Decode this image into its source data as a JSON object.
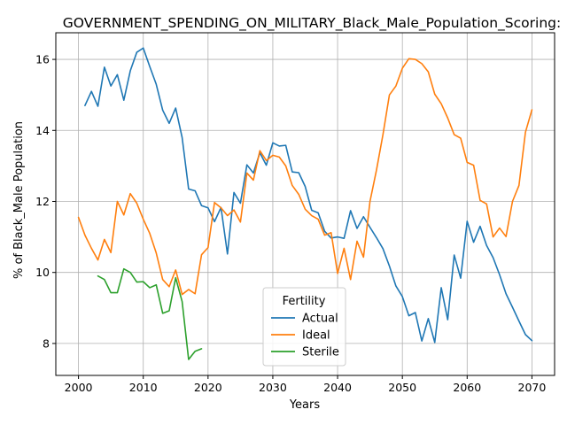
{
  "chart_data": {
    "type": "line",
    "title": "GOVERNMENT_SPENDING_ON_MILITARY_Black_Male_Population_Scoring:",
    "xlabel": "Years",
    "ylabel": "% of Black_Male Population",
    "xlim": [
      1996.5,
      2073.5
    ],
    "ylim": [
      7.1,
      16.75
    ],
    "xticks": [
      2000,
      2010,
      2020,
      2030,
      2040,
      2050,
      2060,
      2070
    ],
    "yticks": [
      8,
      10,
      12,
      14,
      16
    ],
    "grid": true,
    "legend": {
      "title": "Fertility",
      "placement": "lower-center"
    },
    "series": [
      {
        "name": "Actual",
        "color": "#1f77b4",
        "x": [
          2001,
          2002,
          2003,
          2004,
          2005,
          2006,
          2007,
          2008,
          2009,
          2010,
          2011,
          2012,
          2013,
          2014,
          2015,
          2016,
          2017,
          2018,
          2019,
          2020,
          2021,
          2022,
          2023,
          2024,
          2025,
          2026,
          2027,
          2028,
          2029,
          2030,
          2031,
          2032,
          2033,
          2034,
          2035,
          2036,
          2037,
          2038,
          2039,
          2040,
          2041,
          2042,
          2043,
          2044,
          2045,
          2046,
          2047,
          2048,
          2049,
          2050,
          2051,
          2052,
          2053,
          2054,
          2055,
          2056,
          2057,
          2058,
          2059,
          2060,
          2061,
          2062,
          2063,
          2064,
          2065,
          2066,
          2067,
          2068,
          2069,
          2070
        ],
        "y": [
          14.7,
          15.1,
          14.68,
          15.78,
          15.25,
          15.57,
          14.85,
          15.68,
          16.2,
          16.32,
          15.8,
          15.3,
          14.57,
          14.2,
          14.63,
          13.8,
          12.35,
          12.3,
          11.88,
          11.82,
          11.43,
          11.83,
          10.52,
          12.25,
          11.95,
          13.03,
          12.8,
          13.37,
          13.02,
          13.65,
          13.56,
          13.58,
          12.83,
          12.81,
          12.42,
          11.75,
          11.68,
          11.16,
          10.97,
          11.0,
          10.96,
          11.74,
          11.24,
          11.57,
          11.27,
          10.98,
          10.67,
          10.18,
          9.62,
          9.32,
          8.78,
          8.87,
          8.07,
          8.7,
          8.03,
          9.57,
          8.67,
          10.49,
          9.84,
          11.44,
          10.85,
          11.3,
          10.76,
          10.42,
          9.94,
          9.4,
          9.02,
          8.63,
          8.25,
          8.08
        ]
      },
      {
        "name": "Ideal",
        "color": "#ff7f0e",
        "x": [
          2000,
          2001,
          2002,
          2003,
          2004,
          2005,
          2006,
          2007,
          2008,
          2009,
          2010,
          2011,
          2012,
          2013,
          2014,
          2015,
          2016,
          2017,
          2018,
          2019,
          2020,
          2021,
          2022,
          2023,
          2024,
          2025,
          2026,
          2027,
          2028,
          2029,
          2030,
          2031,
          2032,
          2033,
          2034,
          2035,
          2036,
          2037,
          2038,
          2039,
          2040,
          2041,
          2042,
          2043,
          2044,
          2045,
          2046,
          2047,
          2048,
          2049,
          2050,
          2051,
          2052,
          2053,
          2054,
          2055,
          2056,
          2057,
          2058,
          2059,
          2060,
          2061,
          2062,
          2063,
          2064,
          2065,
          2066,
          2067,
          2068,
          2069,
          2070
        ],
        "y": [
          11.55,
          11.05,
          10.68,
          10.35,
          10.93,
          10.56,
          12.0,
          11.62,
          12.22,
          11.95,
          11.5,
          11.1,
          10.55,
          9.8,
          9.6,
          10.07,
          9.38,
          9.52,
          9.4,
          10.5,
          10.7,
          11.97,
          11.82,
          11.6,
          11.76,
          11.42,
          12.8,
          12.6,
          13.43,
          13.15,
          13.3,
          13.25,
          13.0,
          12.45,
          12.2,
          11.78,
          11.6,
          11.5,
          11.05,
          11.12,
          9.97,
          10.68,
          9.8,
          10.88,
          10.43,
          12.0,
          12.88,
          13.88,
          15.0,
          15.25,
          15.75,
          16.02,
          16.0,
          15.88,
          15.65,
          15.02,
          14.75,
          14.35,
          13.88,
          13.78,
          13.1,
          13.02,
          12.03,
          11.93,
          11.0,
          11.25,
          11.01,
          12.0,
          12.45,
          13.95,
          14.58
        ]
      },
      {
        "name": "Sterile",
        "color": "#2ca02c",
        "x": [
          2003,
          2004,
          2005,
          2006,
          2007,
          2008,
          2009,
          2010,
          2011,
          2012,
          2013,
          2014,
          2015,
          2016,
          2017,
          2018,
          2019
        ],
        "y": [
          9.9,
          9.8,
          9.43,
          9.43,
          10.1,
          10.0,
          9.73,
          9.74,
          9.57,
          9.65,
          8.85,
          8.92,
          9.85,
          9.18,
          7.55,
          7.78,
          7.85
        ]
      }
    ]
  }
}
